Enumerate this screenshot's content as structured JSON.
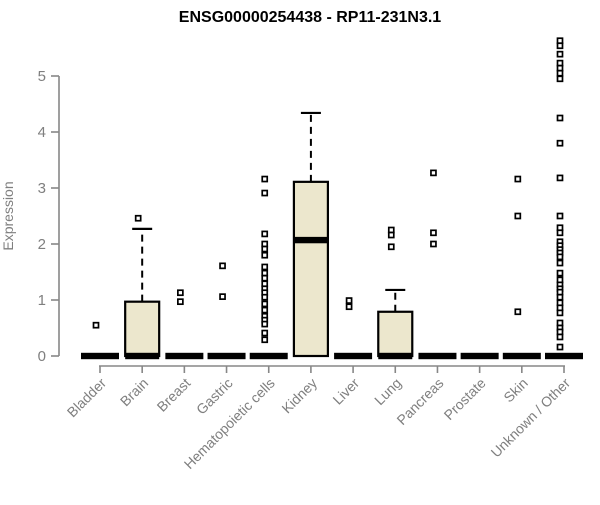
{
  "chart_data": {
    "type": "boxplot",
    "title": "ENSG00000254438 - RP11-231N3.1",
    "xlabel": "",
    "ylabel": "Expression",
    "ylim": [
      0,
      5
    ],
    "yticks": [
      0,
      1,
      2,
      3,
      4,
      5
    ],
    "grid": false,
    "legend": "none",
    "box_fill_color": "#ECE7CD",
    "box_stroke_color": "#000000",
    "axis_color": "#878787",
    "tick_text_color": "#7f7f7f",
    "categories": [
      {
        "label": "Bladder",
        "q1": 0,
        "median": 0,
        "q3": 0,
        "whisker_low": 0,
        "whisker_high": 0,
        "outliers": [
          0.55
        ]
      },
      {
        "label": "Brain",
        "q1": 0,
        "median": 0,
        "q3": 0.97,
        "whisker_low": 0,
        "whisker_high": 2.27,
        "outliers": [
          2.46
        ]
      },
      {
        "label": "Breast",
        "q1": 0,
        "median": 0,
        "q3": 0,
        "whisker_low": 0,
        "whisker_high": 0,
        "outliers": [
          1.13,
          0.97
        ]
      },
      {
        "label": "Gastric",
        "q1": 0,
        "median": 0,
        "q3": 0,
        "whisker_low": 0,
        "whisker_high": 0,
        "outliers": [
          1.61,
          1.06
        ]
      },
      {
        "label": "Hematopoietic cells",
        "q1": 0,
        "median": 0,
        "q3": 0,
        "whisker_low": 0,
        "whisker_high": 0,
        "outliers": [
          3.16,
          2.91,
          2.18,
          2.0,
          1.91,
          1.8,
          1.59,
          1.48,
          1.39,
          1.29,
          1.2,
          1.13,
          1.05,
          0.93,
          0.82,
          0.71,
          0.64,
          0.57,
          0.41,
          0.29
        ]
      },
      {
        "label": "Kidney",
        "q1": 0,
        "median": 2.07,
        "q3": 3.11,
        "whisker_low": 0,
        "whisker_high": 4.34,
        "outliers": []
      },
      {
        "label": "Liver",
        "q1": 0,
        "median": 0,
        "q3": 0,
        "whisker_low": 0,
        "whisker_high": 0,
        "outliers": [
          0.99,
          0.88
        ]
      },
      {
        "label": "Lung",
        "q1": 0,
        "median": 0,
        "q3": 0.79,
        "whisker_low": 0,
        "whisker_high": 1.18,
        "outliers": [
          2.25,
          2.16,
          1.95
        ]
      },
      {
        "label": "Pancreas",
        "q1": 0,
        "median": 0,
        "q3": 0,
        "whisker_low": 0,
        "whisker_high": 0,
        "outliers": [
          3.27,
          2.2,
          2.0
        ]
      },
      {
        "label": "Prostate",
        "q1": 0,
        "median": 0,
        "q3": 0,
        "whisker_low": 0,
        "whisker_high": 0,
        "outliers": []
      },
      {
        "label": "Skin",
        "q1": 0,
        "median": 0,
        "q3": 0,
        "whisker_low": 0,
        "whisker_high": 0,
        "outliers": [
          3.16,
          2.5,
          0.79
        ]
      },
      {
        "label": "Unknown / Other",
        "q1": 0,
        "median": 0,
        "q3": 0,
        "whisker_low": 0,
        "whisker_high": 0,
        "outliers": [
          5.63,
          5.54,
          5.39,
          5.23,
          5.14,
          5.05,
          4.95,
          4.25,
          3.8,
          3.18,
          2.5,
          2.29,
          2.2,
          2.04,
          1.97,
          1.9,
          1.84,
          1.77,
          1.66,
          1.48,
          1.36,
          1.27,
          1.2,
          1.14,
          1.05,
          0.95,
          0.86,
          0.77,
          0.59,
          0.5,
          0.43,
          0.34,
          0.16
        ]
      }
    ]
  }
}
